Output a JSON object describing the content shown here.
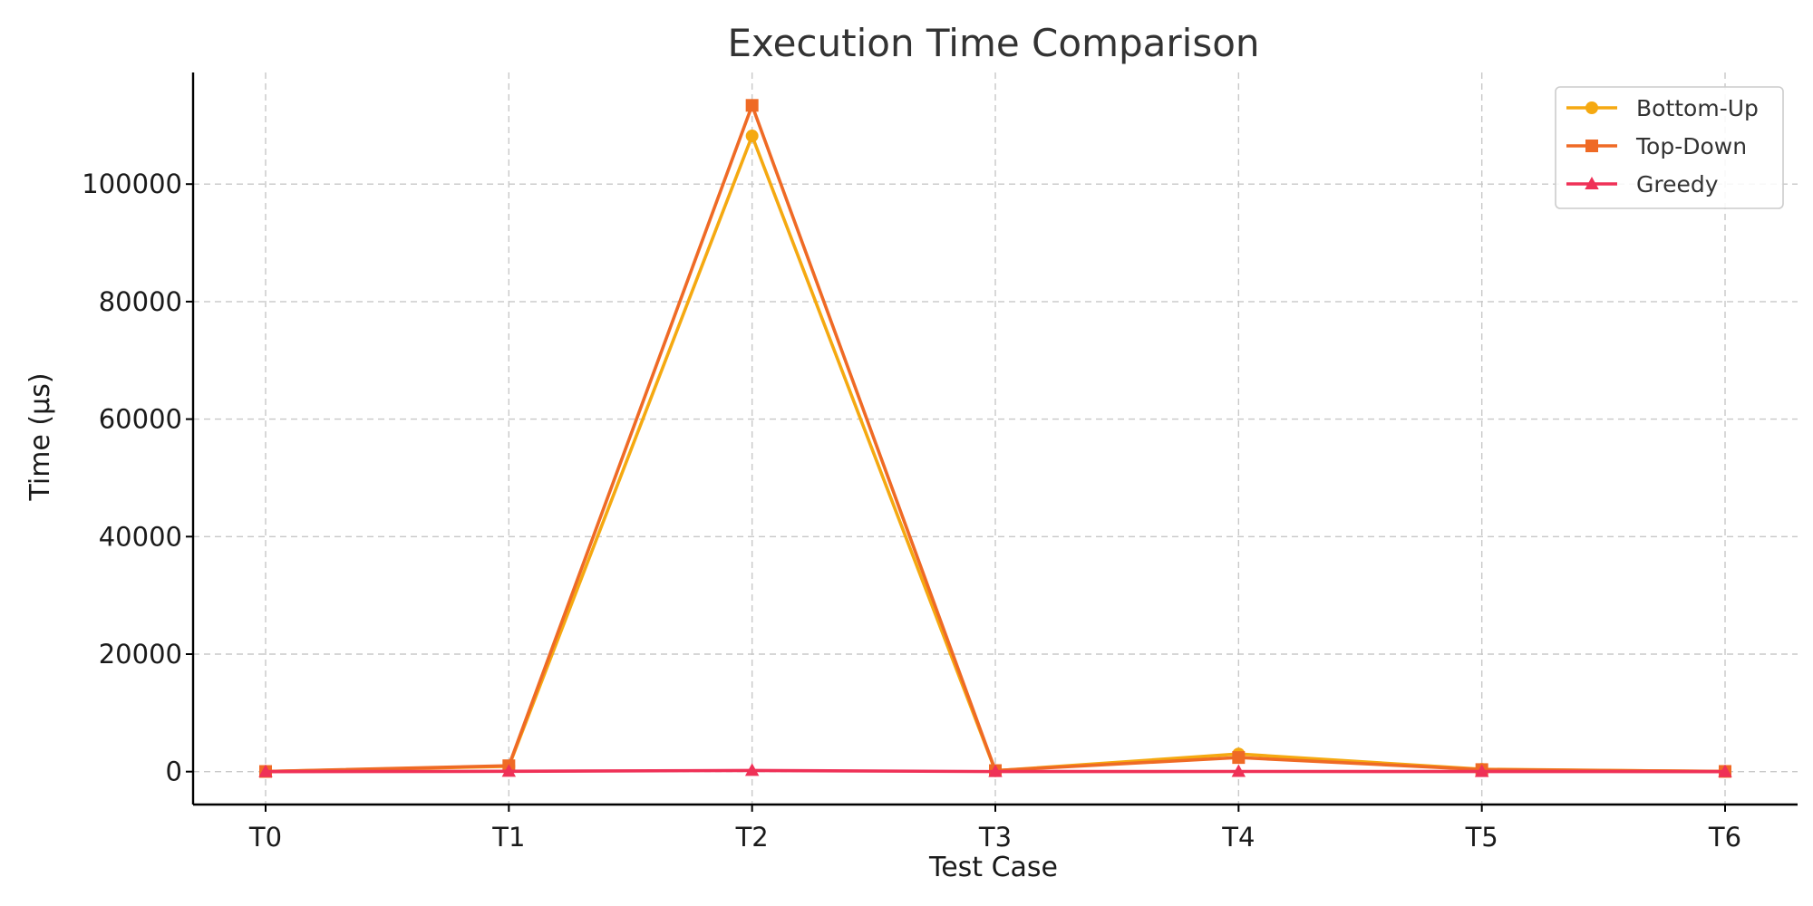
{
  "chart_data": {
    "type": "line",
    "title": "Execution Time Comparison",
    "xlabel": "Test Case",
    "ylabel": "Time (µs)",
    "categories": [
      "T0",
      "T1",
      "T2",
      "T3",
      "T4",
      "T5",
      "T6"
    ],
    "yticks": [
      0,
      20000,
      40000,
      60000,
      80000,
      100000
    ],
    "ytick_labels": [
      "0",
      "20000",
      "40000",
      "60000",
      "80000",
      "100000"
    ],
    "ylim": [
      -5600,
      119000
    ],
    "grid": true,
    "legend_position": "top-right",
    "series": [
      {
        "name": "Bottom-Up",
        "color": "#f5a911",
        "marker": "circle",
        "values": [
          20,
          900,
          108200,
          150,
          3000,
          400,
          30
        ]
      },
      {
        "name": "Top-Down",
        "color": "#ef6a25",
        "marker": "square",
        "values": [
          25,
          1000,
          113400,
          180,
          2400,
          350,
          35
        ]
      },
      {
        "name": "Greedy",
        "color": "#ef3157",
        "marker": "triangle",
        "values": [
          5,
          50,
          200,
          10,
          30,
          15,
          5
        ]
      }
    ]
  }
}
